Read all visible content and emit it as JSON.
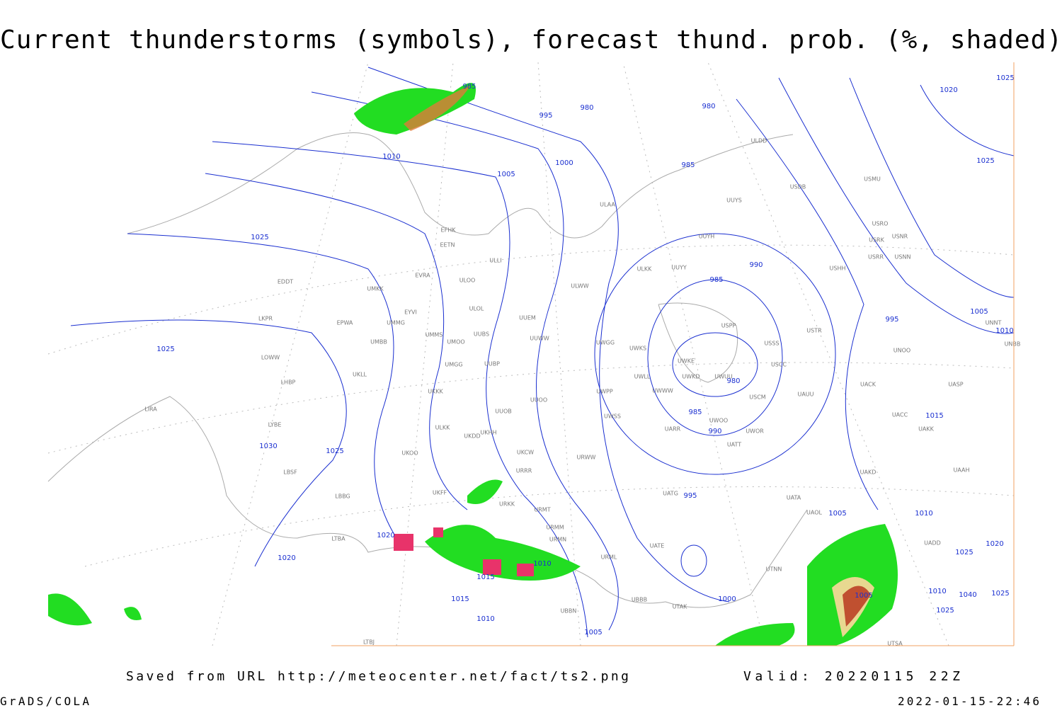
{
  "title": "Current thunderstorms (symbols), forecast thund. prob. (%, shaded)",
  "isobar_labels": [
    "985",
    "995",
    "980",
    "980",
    "1010",
    "1005",
    "1000",
    "985",
    "1025",
    "990",
    "985",
    "995",
    "1005",
    "1010",
    "1025",
    "980",
    "985",
    "990",
    "1015",
    "1025",
    "1030",
    "995",
    "1005",
    "1010",
    "1020",
    "1010",
    "1015",
    "1020",
    "1015",
    "1010",
    "1005",
    "1000",
    "1005",
    "1020",
    "1025",
    "1025",
    "1025",
    "1020",
    "1010",
    "1025",
    "1040",
    "1025"
  ],
  "stations": [
    "ULDD",
    "USDB",
    "USMU",
    "UUYS",
    "ULAA",
    "EFHK",
    "EETN",
    "USRO",
    "USRK",
    "USNR",
    "UUYH",
    "USRR",
    "USNN",
    "EVRA",
    "ULLI",
    "ULOO",
    "ULKK",
    "UUYY",
    "USHH",
    "EDDT",
    "UMKK",
    "ULWW",
    "EYVI",
    "ULOL",
    "UUEM",
    "EPWA",
    "UMMG",
    "LKPR",
    "USPP",
    "USTR",
    "UMMS",
    "UMOO",
    "UUBS",
    "UUWW",
    "UMBB",
    "UWGG",
    "UWKS",
    "USSS",
    "UNNT",
    "UNBB",
    "UNOO",
    "LOWW",
    "UMGG",
    "UUBP",
    "UWKE",
    "USCC",
    "UASP",
    "UWKD",
    "UWUU",
    "UWLL",
    "UWWW",
    "USCM",
    "UAUU",
    "UACK",
    "UKLL",
    "LHBP",
    "UKKK",
    "UUOO",
    "UWPP",
    "UUOB",
    "LIRA",
    "UWSS",
    "UACC",
    "UAKK",
    "LYBE",
    "UKHH",
    "UKDD",
    "UARR",
    "UWOO",
    "UWOR",
    "UATT",
    "UKOO",
    "ULKK",
    "UKCW",
    "URWW",
    "LBSF",
    "URRR",
    "UAKD",
    "UAAH",
    "UKFF",
    "UATG",
    "UATA",
    "LBBG",
    "URKK",
    "URMT",
    "UAOL",
    "LTBA",
    "URMM",
    "URMN",
    "URML",
    "UATE",
    "UTNN",
    "UBBB",
    "UTAK",
    "UBBN",
    "LTBJ",
    "UTSA",
    "UADD"
  ],
  "footer": {
    "source": "Saved from URL http://meteocenter.net/fact/ts2.png",
    "valid": "Valid: 20220115 22Z",
    "software": "GrADS/COLA",
    "timestamp": "2022-01-15-22:46"
  }
}
